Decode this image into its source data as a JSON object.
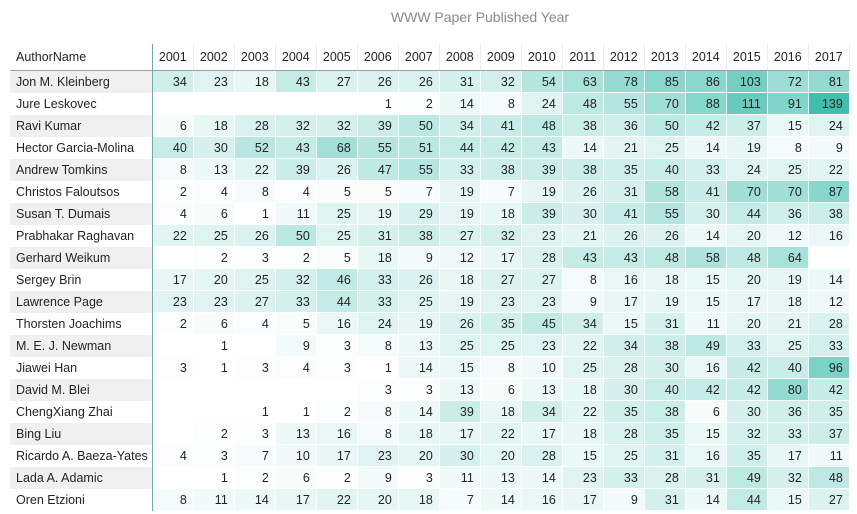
{
  "chart_data": {
    "type": "table",
    "title": "WWW Paper Published Year",
    "row_header": "AuthorName",
    "columns": [
      "2001",
      "2002",
      "2003",
      "2004",
      "2005",
      "2006",
      "2007",
      "2008",
      "2009",
      "2010",
      "2011",
      "2012",
      "2013",
      "2014",
      "2015",
      "2016",
      "2017"
    ],
    "rows": [
      {
        "name": "Jon M. Kleinberg",
        "values": [
          34,
          23,
          18,
          43,
          27,
          26,
          26,
          31,
          32,
          54,
          63,
          78,
          85,
          86,
          103,
          72,
          81
        ]
      },
      {
        "name": "Jure Leskovec",
        "values": [
          null,
          null,
          null,
          null,
          null,
          1,
          2,
          14,
          8,
          24,
          48,
          55,
          70,
          88,
          111,
          91,
          139
        ]
      },
      {
        "name": "Ravi Kumar",
        "values": [
          6,
          18,
          28,
          32,
          32,
          39,
          50,
          34,
          41,
          48,
          38,
          36,
          50,
          42,
          37,
          15,
          24
        ]
      },
      {
        "name": "Hector Garcia-Molina",
        "values": [
          40,
          30,
          52,
          43,
          68,
          55,
          51,
          44,
          42,
          43,
          14,
          21,
          25,
          14,
          19,
          8,
          9
        ]
      },
      {
        "name": "Andrew Tomkins",
        "values": [
          8,
          13,
          22,
          39,
          26,
          47,
          55,
          33,
          38,
          39,
          38,
          35,
          40,
          33,
          24,
          25,
          22
        ]
      },
      {
        "name": "Christos Faloutsos",
        "values": [
          2,
          4,
          8,
          4,
          5,
          5,
          7,
          19,
          7,
          19,
          26,
          31,
          58,
          41,
          70,
          70,
          87
        ]
      },
      {
        "name": "Susan T. Dumais",
        "values": [
          4,
          6,
          1,
          11,
          25,
          19,
          29,
          19,
          18,
          39,
          30,
          41,
          55,
          30,
          44,
          36,
          38
        ]
      },
      {
        "name": "Prabhakar Raghavan",
        "values": [
          22,
          25,
          26,
          50,
          25,
          31,
          38,
          27,
          32,
          23,
          21,
          26,
          26,
          14,
          20,
          12,
          16
        ]
      },
      {
        "name": "Gerhard Weikum",
        "values": [
          null,
          2,
          3,
          2,
          5,
          18,
          9,
          12,
          17,
          28,
          43,
          43,
          48,
          58,
          48,
          64,
          null
        ]
      },
      {
        "name": "Sergey Brin",
        "values": [
          17,
          20,
          25,
          32,
          46,
          33,
          26,
          18,
          27,
          27,
          8,
          16,
          18,
          15,
          20,
          19,
          14
        ]
      },
      {
        "name": "Lawrence Page",
        "values": [
          23,
          23,
          27,
          33,
          44,
          33,
          25,
          19,
          23,
          23,
          9,
          17,
          19,
          15,
          17,
          18,
          12
        ]
      },
      {
        "name": "Thorsten Joachims",
        "values": [
          2,
          6,
          4,
          5,
          16,
          24,
          19,
          26,
          35,
          45,
          34,
          15,
          31,
          11,
          20,
          21,
          28
        ]
      },
      {
        "name": "M. E. J. Newman",
        "values": [
          null,
          1,
          null,
          9,
          3,
          8,
          13,
          25,
          25,
          23,
          22,
          34,
          38,
          49,
          33,
          25,
          33
        ]
      },
      {
        "name": "Jiawei Han",
        "values": [
          3,
          1,
          3,
          4,
          3,
          1,
          14,
          15,
          8,
          10,
          25,
          28,
          30,
          16,
          42,
          40,
          96
        ]
      },
      {
        "name": "David M. Blei",
        "values": [
          null,
          null,
          null,
          null,
          null,
          3,
          3,
          13,
          6,
          13,
          18,
          30,
          40,
          42,
          42,
          80,
          42
        ]
      },
      {
        "name": "ChengXiang Zhai",
        "values": [
          null,
          null,
          1,
          1,
          2,
          8,
          14,
          39,
          18,
          34,
          22,
          35,
          38,
          6,
          30,
          36,
          35
        ]
      },
      {
        "name": "Bing Liu",
        "values": [
          null,
          2,
          3,
          13,
          16,
          8,
          18,
          17,
          22,
          17,
          18,
          28,
          35,
          15,
          32,
          33,
          37
        ]
      },
      {
        "name": "Ricardo A. Baeza-Yates",
        "values": [
          4,
          3,
          7,
          10,
          17,
          23,
          20,
          30,
          20,
          28,
          15,
          25,
          31,
          16,
          35,
          17,
          11
        ]
      },
      {
        "name": "Lada A. Adamic",
        "values": [
          null,
          1,
          2,
          6,
          2,
          9,
          3,
          11,
          13,
          14,
          23,
          33,
          28,
          31,
          49,
          32,
          48
        ]
      },
      {
        "name": "Oren Etzioni",
        "values": [
          8,
          11,
          14,
          17,
          22,
          20,
          18,
          7,
          14,
          16,
          17,
          9,
          31,
          14,
          44,
          15,
          27
        ]
      }
    ],
    "color_scale": {
      "low": "#ffffff",
      "high": "#3fbfad",
      "min": 0,
      "max": 140
    }
  }
}
